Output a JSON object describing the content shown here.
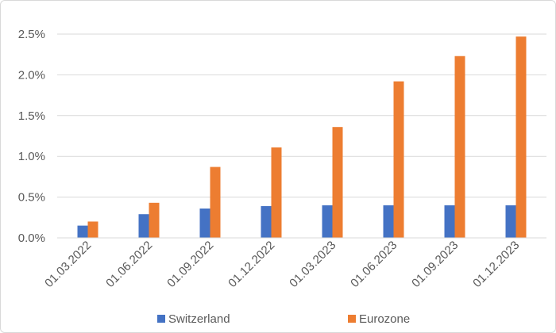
{
  "chart_data": {
    "type": "bar",
    "categories": [
      "01.03.2022",
      "01.06.2022",
      "01.09.2022",
      "01.12.2022",
      "01.03.2023",
      "01.06.2023",
      "01.09.2023",
      "01.12.2023"
    ],
    "series": [
      {
        "name": "Switzerland",
        "color": "#4472C4",
        "values": [
          0.15,
          0.29,
          0.36,
          0.39,
          0.4,
          0.4,
          0.4,
          0.4
        ]
      },
      {
        "name": "Eurozone",
        "color": "#ED7D31",
        "values": [
          0.2,
          0.43,
          0.87,
          1.11,
          1.36,
          1.92,
          2.23,
          2.47
        ]
      }
    ],
    "y_ticks": [
      "0.0%",
      "0.5%",
      "1.0%",
      "1.5%",
      "2.0%",
      "2.5%"
    ],
    "ylim": [
      0,
      2.5
    ],
    "grid": true,
    "legend": "bottom"
  }
}
